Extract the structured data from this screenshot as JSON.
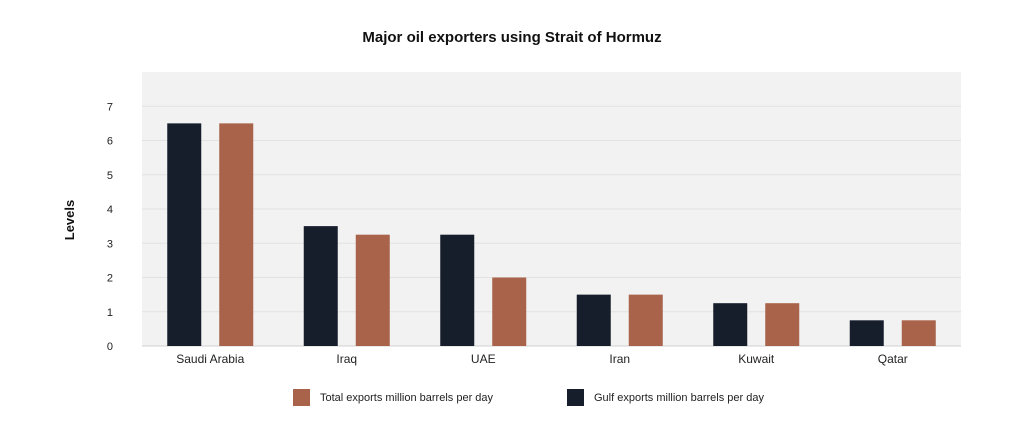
{
  "chart_data": {
    "type": "bar",
    "title": "Major oil exporters using Strait of Hormuz",
    "xlabel": "",
    "ylabel": "Levels",
    "categories": [
      "Saudi Arabia",
      "Iraq",
      "UAE",
      "Iran",
      "Kuwait",
      "Qatar"
    ],
    "series": [
      {
        "name": "Gulf exports million barrels per day",
        "color": "#161d2b",
        "values": [
          6.5,
          3.5,
          3.25,
          1.5,
          1.25,
          0.75
        ]
      },
      {
        "name": "Total exports million barrels per day",
        "color": "#a8634a",
        "values": [
          6.5,
          3.25,
          2.0,
          1.5,
          1.25,
          0.75
        ]
      }
    ],
    "ylim": [
      0,
      8
    ],
    "yticks": [
      0,
      1,
      2,
      3,
      4,
      5,
      6,
      7
    ],
    "grid": true,
    "plot_background": "#f2f2f2",
    "legend_placement": "bottom",
    "legend_order": [
      1,
      0
    ]
  }
}
